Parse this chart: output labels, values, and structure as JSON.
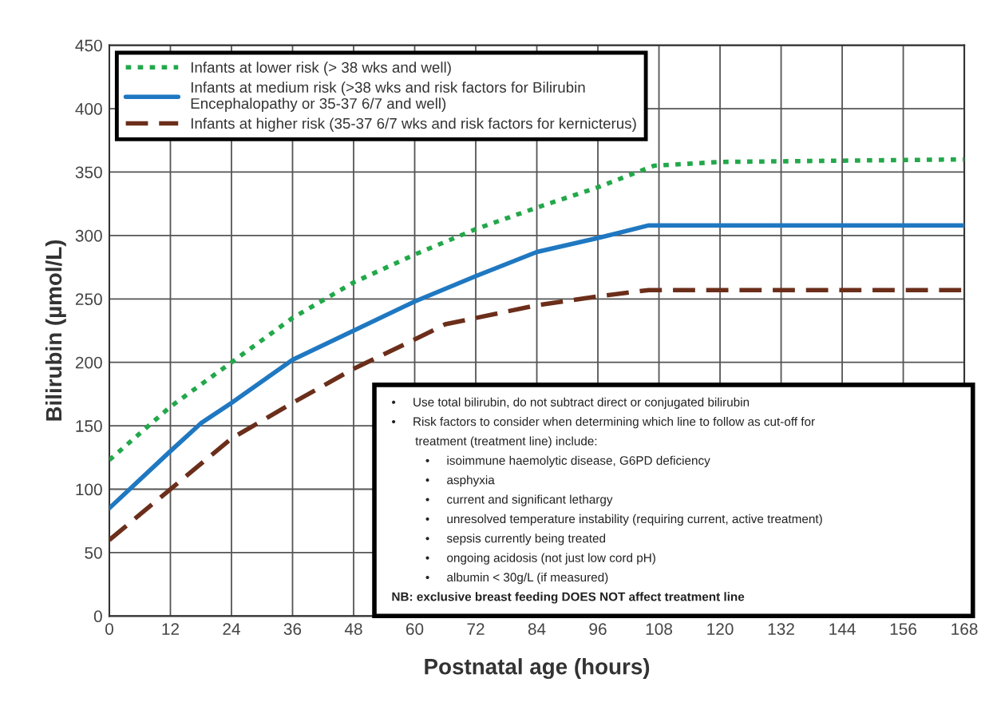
{
  "chart_data": {
    "type": "line",
    "xlabel": "Postnatal age (hours)",
    "ylabel": "Bilirubin (µmol/L)",
    "xlim": [
      0,
      168
    ],
    "xticks": [
      0,
      12,
      24,
      36,
      48,
      60,
      72,
      84,
      96,
      108,
      120,
      132,
      144,
      156,
      168
    ],
    "ylim": [
      0,
      450
    ],
    "yticks": [
      0,
      50,
      100,
      150,
      200,
      250,
      300,
      350,
      400,
      450
    ],
    "grid": true,
    "legend": "top",
    "series": [
      {
        "name": "Infants at lower risk (> 38 wks and well)",
        "color": "#22a84a",
        "line_style": "dotted",
        "x": [
          0,
          12,
          24,
          36,
          48,
          60,
          72,
          84,
          96,
          107,
          120,
          168
        ],
        "values": [
          123,
          165,
          200,
          235,
          263,
          285,
          305,
          322,
          338,
          355,
          358,
          360
        ]
      },
      {
        "name": "Infants at medium risk (>38 wks and risk factors for Bilirubin\nEncephalopathy or 35-37 6/7 and well)",
        "color": "#1f78c1",
        "line_style": "solid",
        "x": [
          0,
          12,
          18,
          24,
          36,
          48,
          60,
          72,
          84,
          96,
          106,
          168
        ],
        "values": [
          85,
          130,
          152,
          168,
          202,
          225,
          248,
          268,
          287,
          298,
          308,
          308
        ]
      },
      {
        "name": "Infants at higher risk (35-37 6/7 wks and risk factors for kernicterus)",
        "color": "#6b2e1a",
        "line_style": "dashed",
        "x": [
          0,
          12,
          24,
          36,
          48,
          60,
          66,
          84,
          96,
          106,
          168
        ],
        "values": [
          60,
          100,
          140,
          168,
          195,
          218,
          230,
          245,
          252,
          257,
          257
        ]
      }
    ],
    "annotations": [
      "•     Use total bilirubin, do not subtract direct or conjugated bilirubin",
      "•     Risk factors to consider when determining which line to follow as cut-off for",
      "       treatment (treatment line) include:",
      "          •     isoimmune haemolytic disease, G6PD deficiency",
      "          •     asphyxia",
      "          •     current and significant lethargy",
      "          •     unresolved temperature instability (requiring current, active treatment)",
      "          •     sepsis currently being treated",
      "          •     ongoing acidosis (not just low cord pH)",
      "          •     albumin < 30g/L (if measured)",
      "NB: exclusive breast feeding DOES NOT affect treatment line"
    ]
  }
}
